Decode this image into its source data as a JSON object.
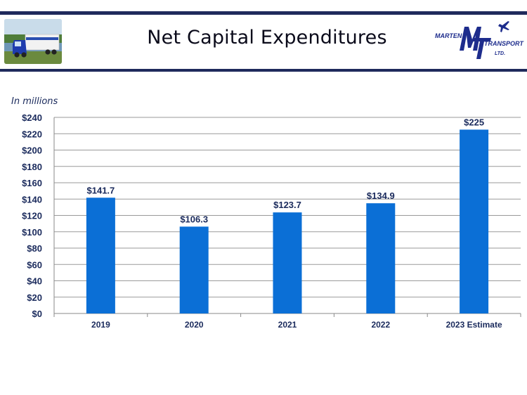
{
  "header": {
    "title": "Net Capital Expenditures",
    "logo": {
      "line1": "MARTEN",
      "line2": "TRANSPORT",
      "line3": "LTD."
    }
  },
  "chart_data": {
    "type": "bar",
    "units_note": "In millions",
    "categories": [
      "2019",
      "2020",
      "2021",
      "2022",
      "2023 Estimate"
    ],
    "values": [
      141.7,
      106.3,
      123.7,
      134.9,
      225
    ],
    "data_labels": [
      "$141.7",
      "$106.3",
      "$123.7",
      "$134.9",
      "$225"
    ],
    "ylim": [
      0,
      240
    ],
    "yticks": [
      0,
      20,
      40,
      60,
      80,
      100,
      120,
      140,
      160,
      180,
      200,
      220,
      240
    ],
    "ytick_labels": [
      "$0",
      "$20",
      "$40",
      "$60",
      "$80",
      "$100",
      "$120",
      "$140",
      "$160",
      "$180",
      "$200",
      "$220",
      "$240"
    ],
    "bar_color": "#0b6fd6",
    "grid_color": "#9a9a9a",
    "grid": true,
    "xlabel": "",
    "ylabel": ""
  }
}
